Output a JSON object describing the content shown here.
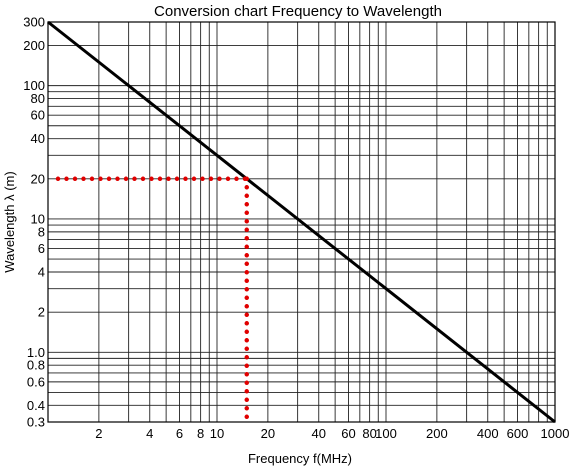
{
  "chart_data": {
    "type": "line",
    "title": "Conversion chart Frequency to Wavelength",
    "xlabel": "Frequency f(MHz)",
    "ylabel": "Wavelength λ (m)",
    "x_scale": "log",
    "y_scale": "log",
    "xlim": [
      1,
      1000
    ],
    "ylim": [
      0.3,
      300
    ],
    "x_ticks": [
      {
        "value": 2,
        "label": "2"
      },
      {
        "value": 4,
        "label": "4"
      },
      {
        "value": 6,
        "label": "6"
      },
      {
        "value": 8,
        "label": "8"
      },
      {
        "value": 10,
        "label": "10"
      },
      {
        "value": 20,
        "label": "20"
      },
      {
        "value": 40,
        "label": "40"
      },
      {
        "value": 60,
        "label": "60"
      },
      {
        "value": 80,
        "label": "80"
      },
      {
        "value": 100,
        "label": "100"
      },
      {
        "value": 200,
        "label": "200"
      },
      {
        "value": 400,
        "label": "400"
      },
      {
        "value": 600,
        "label": "600"
      },
      {
        "value": 1000,
        "label": "1000"
      }
    ],
    "y_ticks": [
      {
        "value": 0.3,
        "label": "0.3"
      },
      {
        "value": 0.4,
        "label": "0.4"
      },
      {
        "value": 0.6,
        "label": "0.6"
      },
      {
        "value": 0.8,
        "label": "0.8"
      },
      {
        "value": 1,
        "label": "1.0"
      },
      {
        "value": 2,
        "label": "2"
      },
      {
        "value": 4,
        "label": "4"
      },
      {
        "value": 6,
        "label": "6"
      },
      {
        "value": 8,
        "label": "8"
      },
      {
        "value": 10,
        "label": "10"
      },
      {
        "value": 20,
        "label": "20"
      },
      {
        "value": 40,
        "label": "40"
      },
      {
        "value": 60,
        "label": "60"
      },
      {
        "value": 80,
        "label": "80"
      },
      {
        "value": 100,
        "label": "100"
      },
      {
        "value": 200,
        "label": "200"
      },
      {
        "value": 300,
        "label": "300"
      }
    ],
    "grid": true,
    "series": [
      {
        "x": [
          1,
          1000
        ],
        "y": [
          300,
          0.3
        ],
        "color": "#000000",
        "style": "solid"
      }
    ],
    "annotation": {
      "x": 15,
      "y": 20,
      "color": "#e00000",
      "style": "dotted"
    }
  }
}
